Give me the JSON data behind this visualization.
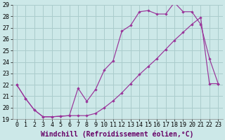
{
  "title": "",
  "xlabel": "Windchill (Refroidissement éolien,°C)",
  "ylabel": "",
  "bg_color": "#cce8e8",
  "grid_color": "#aacccc",
  "line_color": "#993399",
  "xlim": [
    -0.5,
    23.5
  ],
  "ylim": [
    19,
    29
  ],
  "yticks": [
    19,
    20,
    21,
    22,
    23,
    24,
    25,
    26,
    27,
    28,
    29
  ],
  "xticks": [
    0,
    1,
    2,
    3,
    4,
    5,
    6,
    7,
    8,
    9,
    10,
    11,
    12,
    13,
    14,
    15,
    16,
    17,
    18,
    19,
    20,
    21,
    22,
    23
  ],
  "line1_x": [
    0,
    1,
    2,
    3,
    4,
    5,
    6,
    7,
    8,
    9,
    10,
    11,
    12,
    13,
    14,
    15,
    16,
    17,
    18,
    19,
    20,
    21,
    22,
    23
  ],
  "line1_y": [
    22.0,
    20.8,
    19.8,
    19.2,
    19.2,
    19.25,
    19.3,
    21.7,
    20.55,
    21.6,
    23.3,
    24.1,
    26.7,
    27.2,
    28.4,
    28.5,
    28.2,
    28.2,
    29.2,
    28.4,
    28.4,
    27.3,
    24.3,
    22.1
  ],
  "line2_x": [
    0,
    1,
    2,
    3,
    4,
    5,
    6,
    7,
    8,
    9,
    10,
    11,
    12,
    13,
    14,
    15,
    16,
    17,
    18,
    19,
    20,
    21,
    22,
    23
  ],
  "line2_y": [
    22.0,
    20.8,
    19.8,
    19.2,
    19.2,
    19.25,
    19.3,
    19.3,
    19.3,
    19.5,
    20.0,
    20.6,
    21.3,
    22.1,
    22.9,
    23.6,
    24.3,
    25.1,
    25.9,
    26.6,
    27.3,
    27.9,
    22.1,
    22.1
  ],
  "xlabel_fontsize": 7.0,
  "tick_fontsize": 6.0
}
